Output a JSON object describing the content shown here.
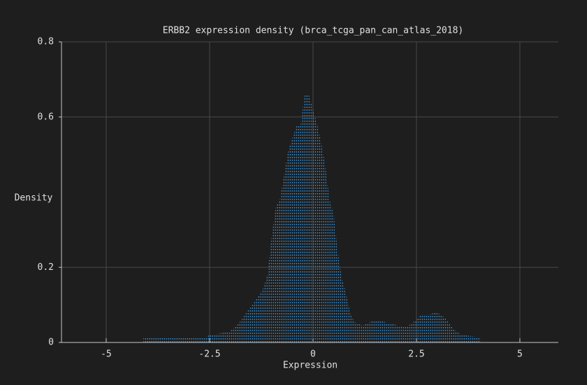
{
  "chart_data": {
    "type": "area",
    "title": "ERBB2 expression density (brca_tcga_pan_can_atlas_2018)",
    "x_label": "Expression",
    "y_label": "Density",
    "x": [
      -4.1,
      -3.5,
      -3.0,
      -2.6,
      -2.5,
      -2.2,
      -2.0,
      -1.8,
      -1.6,
      -1.4,
      -1.2,
      -1.1,
      -1.0,
      -0.9,
      -0.8,
      -0.6,
      -0.4,
      -0.3,
      -0.2,
      -0.1,
      0.1,
      0.2,
      0.3,
      0.4,
      0.5,
      0.6,
      0.7,
      0.8,
      0.9,
      1.0,
      1.2,
      1.4,
      1.6,
      1.8,
      2.0,
      2.2,
      2.4,
      2.6,
      2.8,
      3.0,
      3.2,
      3.4,
      3.6,
      4.05
    ],
    "values": [
      0.014,
      0.014,
      0.014,
      0.014,
      0.02,
      0.025,
      0.03,
      0.05,
      0.08,
      0.11,
      0.145,
      0.18,
      0.28,
      0.36,
      0.38,
      0.51,
      0.577,
      0.58,
      0.66,
      0.66,
      0.58,
      0.53,
      0.47,
      0.38,
      0.34,
      0.24,
      0.17,
      0.13,
      0.08,
      0.055,
      0.045,
      0.055,
      0.06,
      0.052,
      0.047,
      0.04,
      0.05,
      0.075,
      0.075,
      0.08,
      0.065,
      0.035,
      0.02,
      0.014
    ],
    "color": "#3a8fd0",
    "xlim": [
      -6.08,
      5.93
    ],
    "xticks": [
      -5,
      -2.5,
      0,
      2.5,
      5
    ],
    "ylim": [
      0,
      0.8
    ],
    "yticks": [
      0,
      0.2,
      0.6,
      0.8
    ],
    "grid": true
  }
}
